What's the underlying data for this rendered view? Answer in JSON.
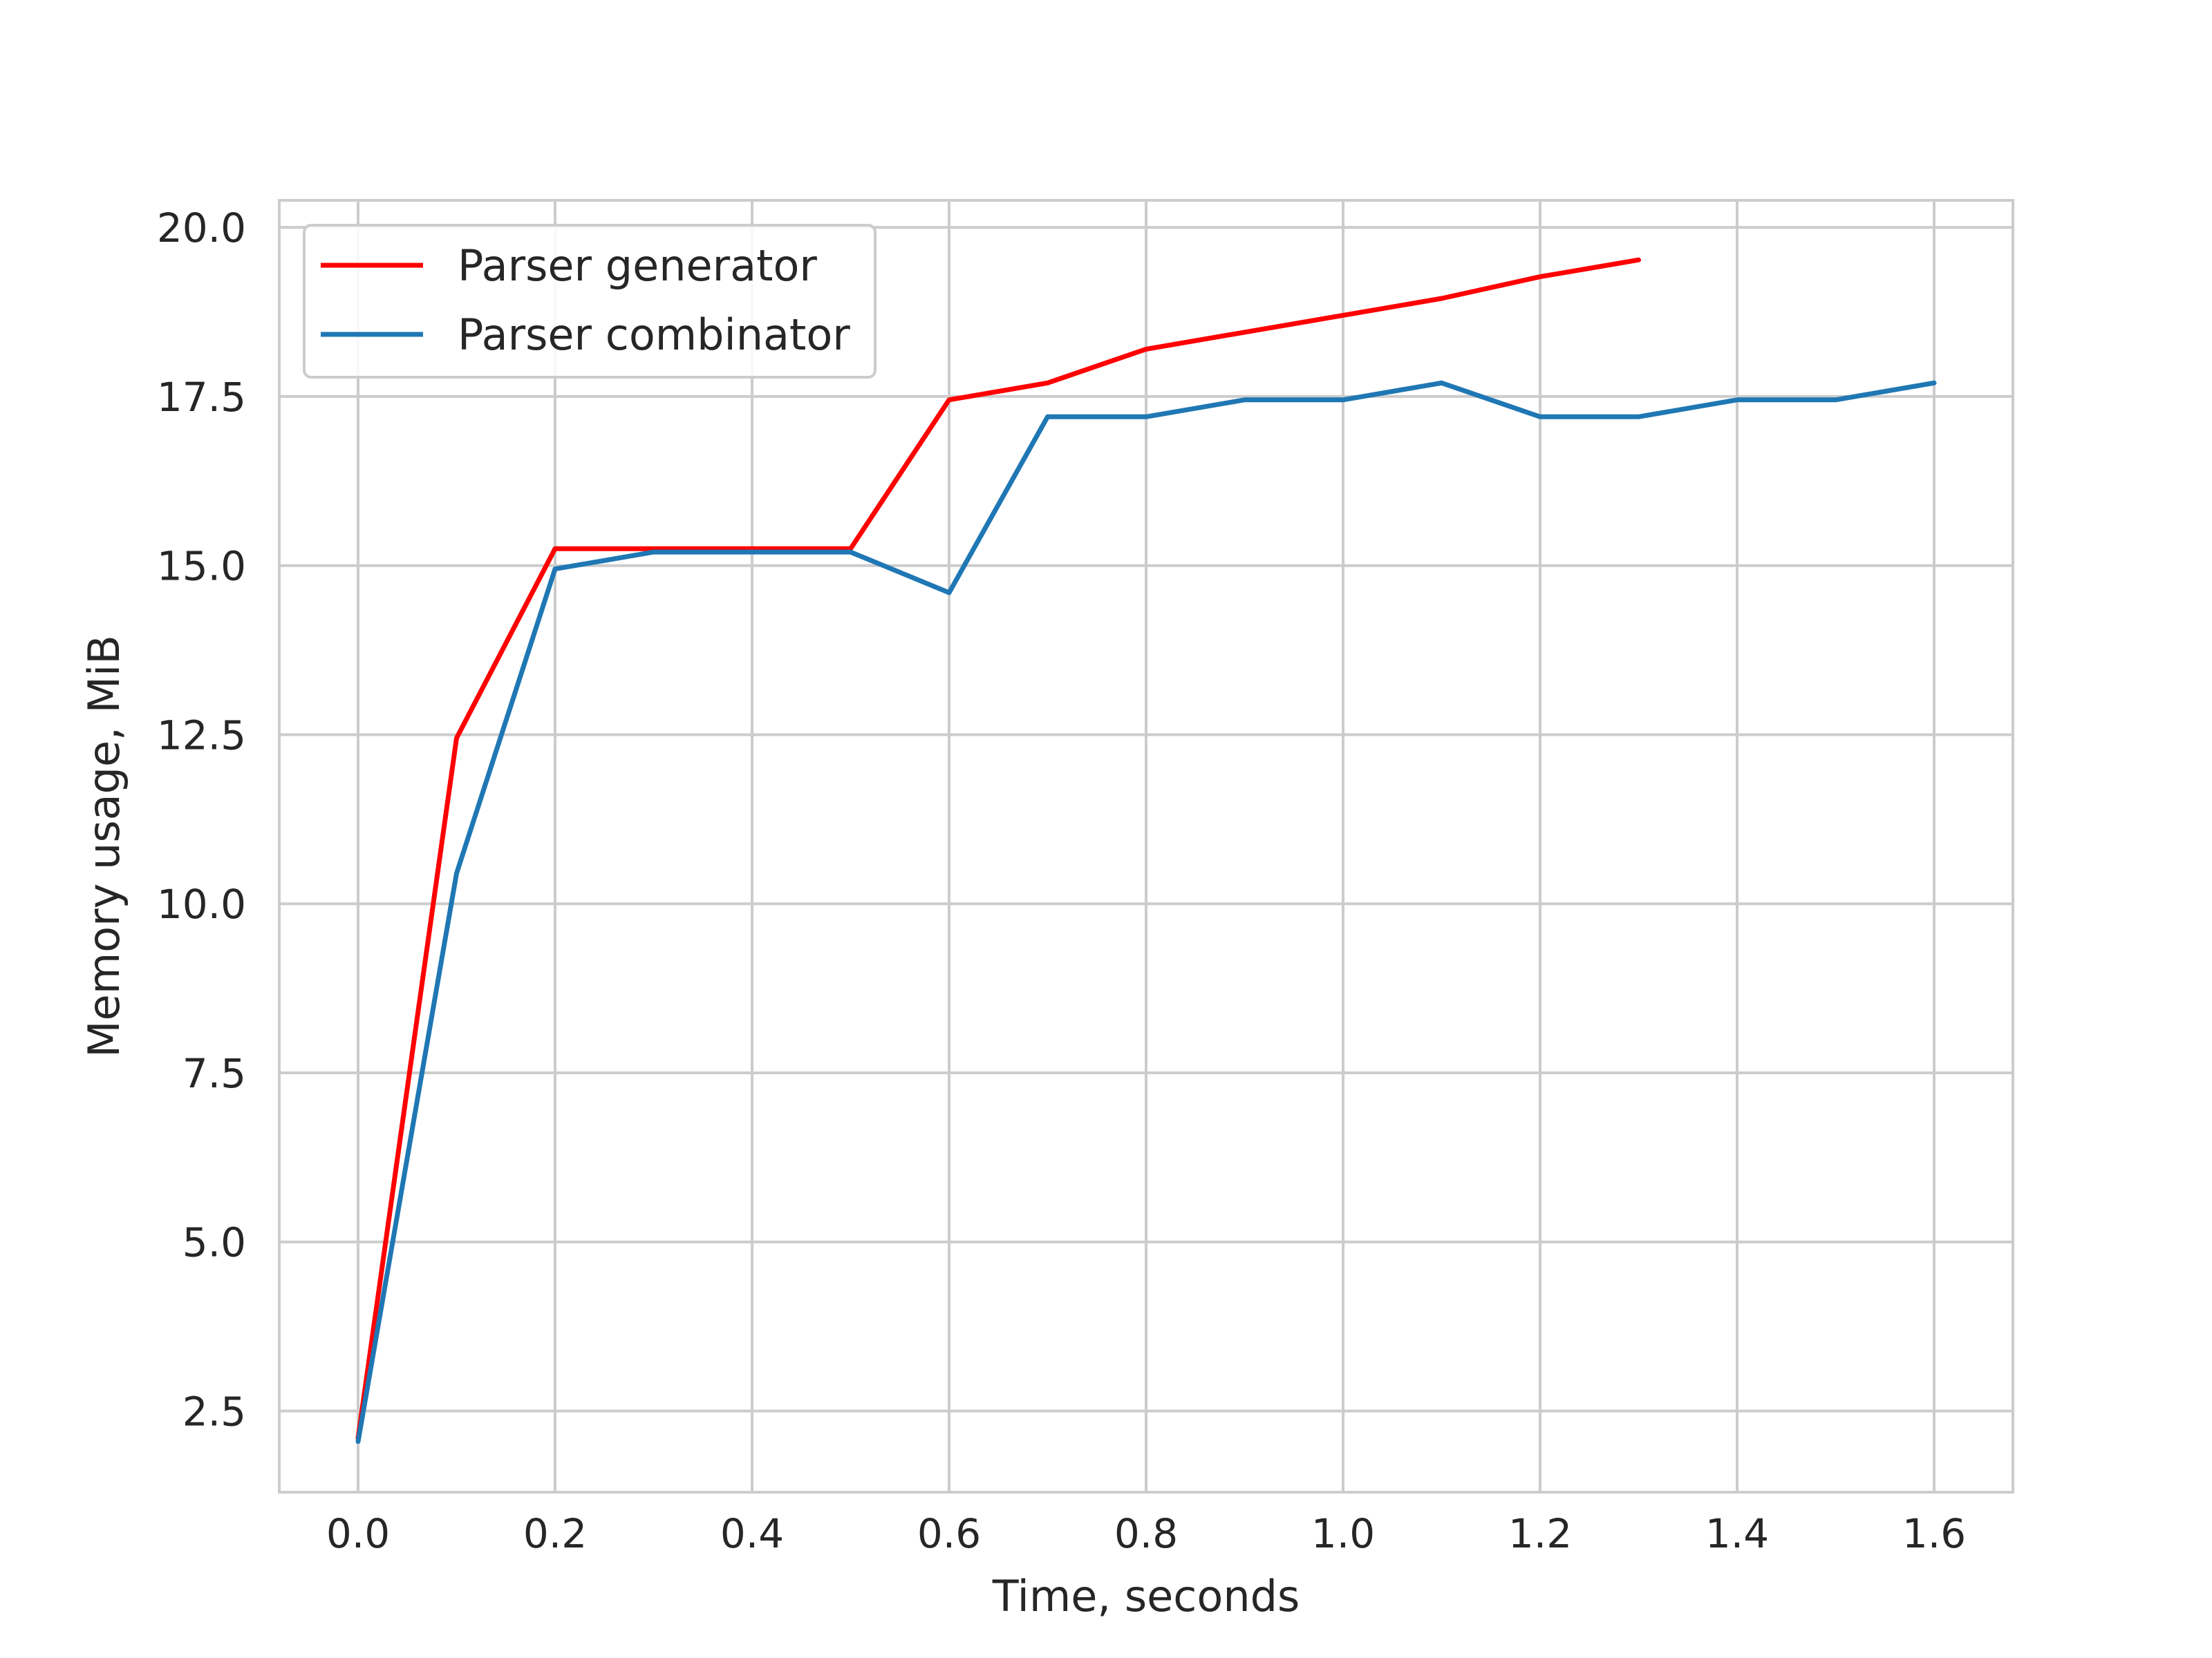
{
  "chart_data": {
    "type": "line",
    "xlabel": "Time, seconds",
    "ylabel": "Memory usage, MiB",
    "xlim": [
      -0.08,
      1.68
    ],
    "ylim": [
      1.3,
      20.4
    ],
    "xticks": [
      0.0,
      0.2,
      0.4,
      0.6,
      0.8,
      1.0,
      1.2,
      1.4,
      1.6
    ],
    "xtick_labels": [
      "0.0",
      "0.2",
      "0.4",
      "0.6",
      "0.8",
      "1.0",
      "1.2",
      "1.4",
      "1.6"
    ],
    "yticks": [
      2.5,
      5.0,
      7.5,
      10.0,
      12.5,
      15.0,
      17.5,
      20.0
    ],
    "ytick_labels": [
      "2.5",
      "5.0",
      "7.5",
      "10.0",
      "12.5",
      "15.0",
      "17.5",
      "20.0"
    ],
    "grid": true,
    "legend_position": "top-left",
    "series": [
      {
        "name": "Parser generator",
        "color": "#ff0000",
        "x": [
          0.0,
          0.1,
          0.2,
          0.3,
          0.4,
          0.5,
          0.6,
          0.7,
          0.8,
          0.9,
          1.0,
          1.1,
          1.2,
          1.3
        ],
        "y": [
          2.1,
          12.45,
          15.25,
          15.25,
          15.25,
          15.25,
          17.45,
          17.7,
          18.2,
          18.45,
          18.7,
          18.95,
          19.27,
          19.52
        ]
      },
      {
        "name": "Parser combinator",
        "color": "#1f77b4",
        "x": [
          0.0,
          0.1,
          0.2,
          0.3,
          0.4,
          0.5,
          0.6,
          0.7,
          0.8,
          0.9,
          1.0,
          1.1,
          1.2,
          1.3,
          1.4,
          1.5,
          1.6
        ],
        "y": [
          2.05,
          10.45,
          14.95,
          15.2,
          15.2,
          15.2,
          14.6,
          17.2,
          17.2,
          17.45,
          17.45,
          17.7,
          17.2,
          17.2,
          17.45,
          17.45,
          17.7
        ]
      }
    ]
  }
}
